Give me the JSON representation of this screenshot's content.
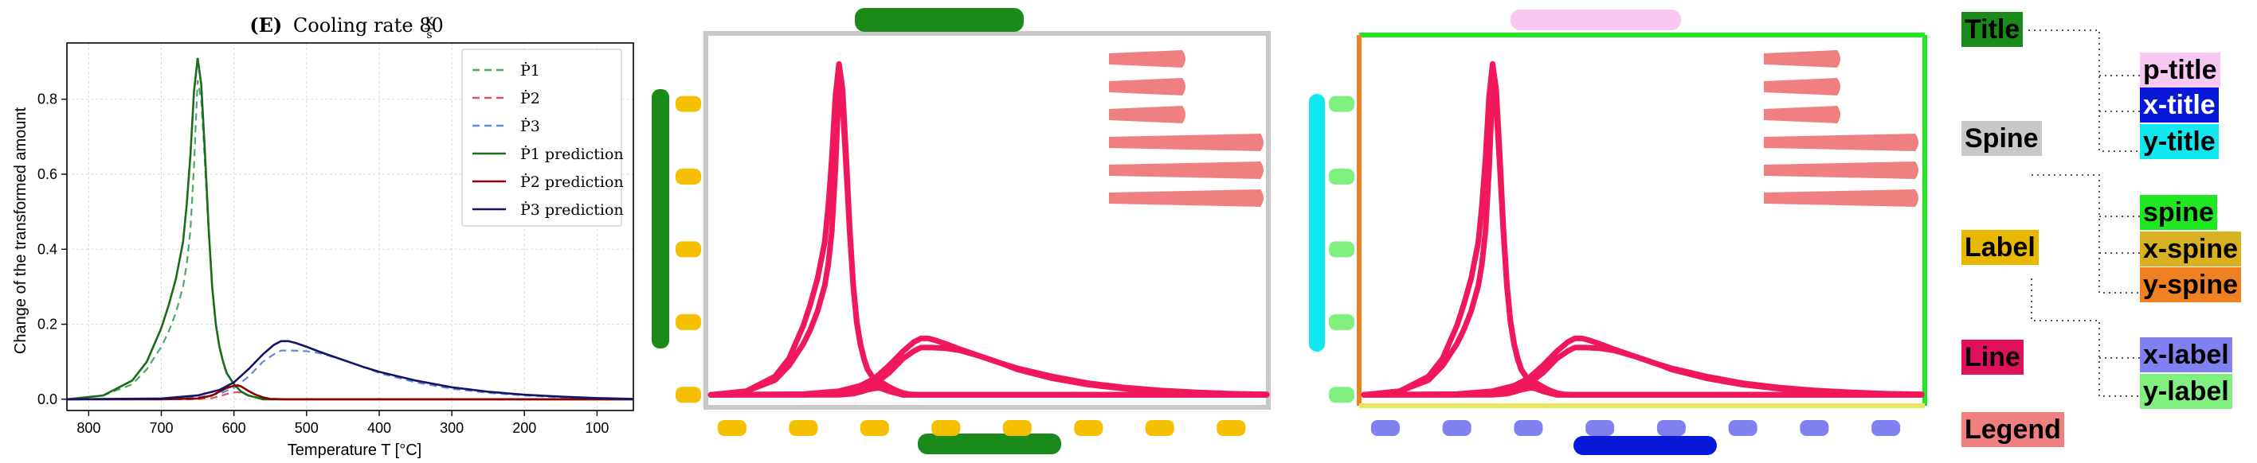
{
  "colors": {
    "p1": "#1a6b1a",
    "p2": "#8b0000",
    "p3": "#141466",
    "p1_true": "#4fa86a",
    "p2_true": "#d9545e",
    "p3_true": "#5b8fd6",
    "title_mask": "#1a8a1a",
    "label_mask": "#f5c000",
    "line_mask": "#f0185a",
    "legend_mask": "#f08080",
    "spine_mask": "#c8c8c8",
    "p_title": "#f8c8f0",
    "x_title": "#0818d8",
    "y_title": "#10e8f0",
    "spine": "#20e820",
    "x_spine": "#e8e860",
    "y_spine": "#f08020",
    "x_label": "#8080f0",
    "y_label": "#80f080"
  },
  "chart_data": {
    "type": "line",
    "title": "(E) Cooling rate 80 K/s",
    "title_prefix": "(E)",
    "title_text": "Cooling rate 80",
    "title_frac_num": "K",
    "title_frac_den": "s",
    "xlabel": "Temperature T [°C]",
    "ylabel": "Change of the transformed amount",
    "xlim": [
      830,
      50
    ],
    "ylim": [
      -0.03,
      0.95
    ],
    "x_reversed": true,
    "grid": true,
    "legend_position": "top-right",
    "x_ticks": [
      800,
      700,
      600,
      500,
      400,
      300,
      200,
      100
    ],
    "x_tick_labels": [
      "800",
      "700",
      "600",
      "500",
      "400",
      "300",
      "200",
      "100"
    ],
    "y_ticks": [
      0.0,
      0.2,
      0.4,
      0.6,
      0.8
    ],
    "y_tick_labels": [
      "0.0",
      "0.2",
      "0.4",
      "0.6",
      "0.8"
    ],
    "series": [
      {
        "name": "Ṗ1",
        "style": "dashed",
        "color_key": "p1_true",
        "x": [
          830,
          780,
          740,
          720,
          700,
          690,
          680,
          670,
          665,
          660,
          655,
          650,
          645,
          640,
          635,
          630,
          625,
          620,
          615,
          610,
          600,
          590,
          580,
          570,
          560,
          540,
          500,
          450,
          400,
          300,
          200,
          100,
          50
        ],
        "y": [
          0,
          0.01,
          0.04,
          0.08,
          0.14,
          0.18,
          0.23,
          0.3,
          0.36,
          0.45,
          0.62,
          0.85,
          0.8,
          0.63,
          0.45,
          0.3,
          0.2,
          0.14,
          0.1,
          0.07,
          0.04,
          0.02,
          0.01,
          0.005,
          0,
          0,
          0,
          0,
          0,
          0,
          0,
          0,
          0
        ]
      },
      {
        "name": "Ṗ2",
        "style": "dashed",
        "color_key": "p2_true",
        "x": [
          830,
          700,
          650,
          630,
          620,
          610,
          600,
          595,
          590,
          580,
          570,
          560,
          550,
          530,
          500,
          400,
          200,
          50
        ],
        "y": [
          0,
          0,
          0,
          0.003,
          0.008,
          0.014,
          0.018,
          0.019,
          0.017,
          0.01,
          0.005,
          0.002,
          0,
          0,
          0,
          0,
          0,
          0
        ]
      },
      {
        "name": "Ṗ3",
        "style": "dashed",
        "color_key": "p3_true",
        "x": [
          830,
          700,
          650,
          620,
          600,
          580,
          560,
          545,
          535,
          520,
          500,
          480,
          450,
          420,
          400,
          350,
          300,
          250,
          200,
          150,
          100,
          50
        ],
        "y": [
          0,
          0,
          0.005,
          0.015,
          0.03,
          0.06,
          0.1,
          0.12,
          0.13,
          0.13,
          0.128,
          0.122,
          0.105,
          0.085,
          0.07,
          0.045,
          0.028,
          0.017,
          0.01,
          0.005,
          0.002,
          0.001
        ]
      },
      {
        "name": "Ṗ1 prediction",
        "style": "solid",
        "color_key": "p1",
        "x": [
          830,
          780,
          740,
          720,
          700,
          690,
          680,
          670,
          665,
          660,
          655,
          650,
          645,
          640,
          635,
          630,
          625,
          620,
          615,
          610,
          600,
          590,
          580,
          570,
          560,
          540,
          500,
          450,
          400,
          300,
          200,
          100,
          50
        ],
        "y": [
          0,
          0.01,
          0.05,
          0.1,
          0.19,
          0.25,
          0.32,
          0.42,
          0.52,
          0.65,
          0.82,
          0.91,
          0.84,
          0.66,
          0.46,
          0.3,
          0.2,
          0.14,
          0.1,
          0.07,
          0.04,
          0.02,
          0.01,
          0.005,
          0,
          0,
          0,
          0,
          0,
          0,
          0,
          0,
          0
        ]
      },
      {
        "name": "Ṗ2 prediction",
        "style": "solid",
        "color_key": "p2",
        "x": [
          830,
          700,
          650,
          630,
          620,
          610,
          600,
          595,
          590,
          580,
          570,
          560,
          550,
          530,
          500,
          400,
          200,
          50
        ],
        "y": [
          0,
          0,
          0.002,
          0.01,
          0.02,
          0.03,
          0.036,
          0.037,
          0.034,
          0.022,
          0.012,
          0.005,
          0.001,
          0,
          0,
          0,
          0,
          0
        ]
      },
      {
        "name": "Ṗ3 prediction",
        "style": "solid",
        "color_key": "p3",
        "x": [
          830,
          700,
          650,
          620,
          600,
          580,
          560,
          545,
          535,
          525,
          515,
          500,
          480,
          450,
          420,
          400,
          350,
          300,
          250,
          200,
          150,
          100,
          50
        ],
        "y": [
          0,
          0.002,
          0.01,
          0.025,
          0.045,
          0.08,
          0.12,
          0.145,
          0.155,
          0.155,
          0.15,
          0.14,
          0.125,
          0.105,
          0.085,
          0.073,
          0.05,
          0.032,
          0.02,
          0.012,
          0.007,
          0.003,
          0.001
        ]
      }
    ]
  },
  "tree": {
    "title": "Title",
    "spine": "Spine",
    "label": "Label",
    "line": "Line",
    "legend": "Legend",
    "p_title": "p-title",
    "x_title": "x-title",
    "y_title": "y-title",
    "spine_child": "spine",
    "x_spine": "x-spine",
    "y_spine": "y-spine",
    "x_label": "x-label",
    "y_label": "y-label"
  }
}
